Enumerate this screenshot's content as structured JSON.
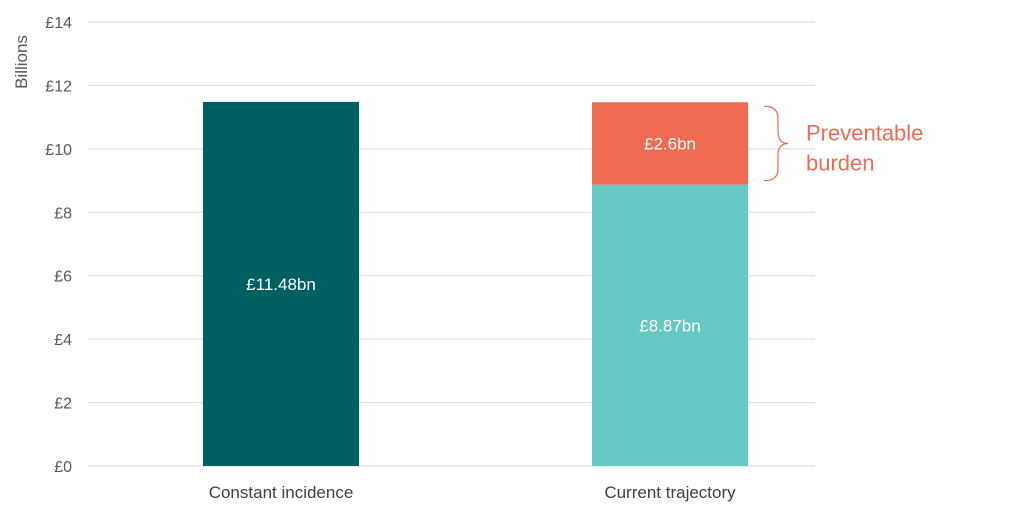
{
  "chart_data": {
    "type": "bar",
    "stacked": true,
    "ylabel": "Billions",
    "ylim": [
      0,
      14
    ],
    "yticks": [
      0,
      2,
      4,
      6,
      8,
      10,
      12,
      14
    ],
    "ytick_labels": [
      "£0",
      "£2",
      "£4",
      "£6",
      "£8",
      "£10",
      "£12",
      "£14"
    ],
    "grid": true,
    "categories": [
      "Constant incidence",
      "Current trajectory"
    ],
    "series": [
      {
        "values": [
          11.48,
          0
        ],
        "color": "#005f61",
        "labels": [
          "£11.48bn",
          ""
        ]
      },
      {
        "values": [
          0,
          8.87
        ],
        "color": "#65c8c2",
        "labels": [
          "",
          "£8.87bn"
        ]
      },
      {
        "values": [
          0,
          2.6
        ],
        "color": "#ee6b52",
        "labels": [
          "",
          "£2.6bn"
        ]
      }
    ],
    "annotation": {
      "lines": [
        "Preventable",
        "burden"
      ],
      "color": "#ee6b52",
      "target_category": "Current trajectory",
      "target_series_index": 2
    }
  }
}
